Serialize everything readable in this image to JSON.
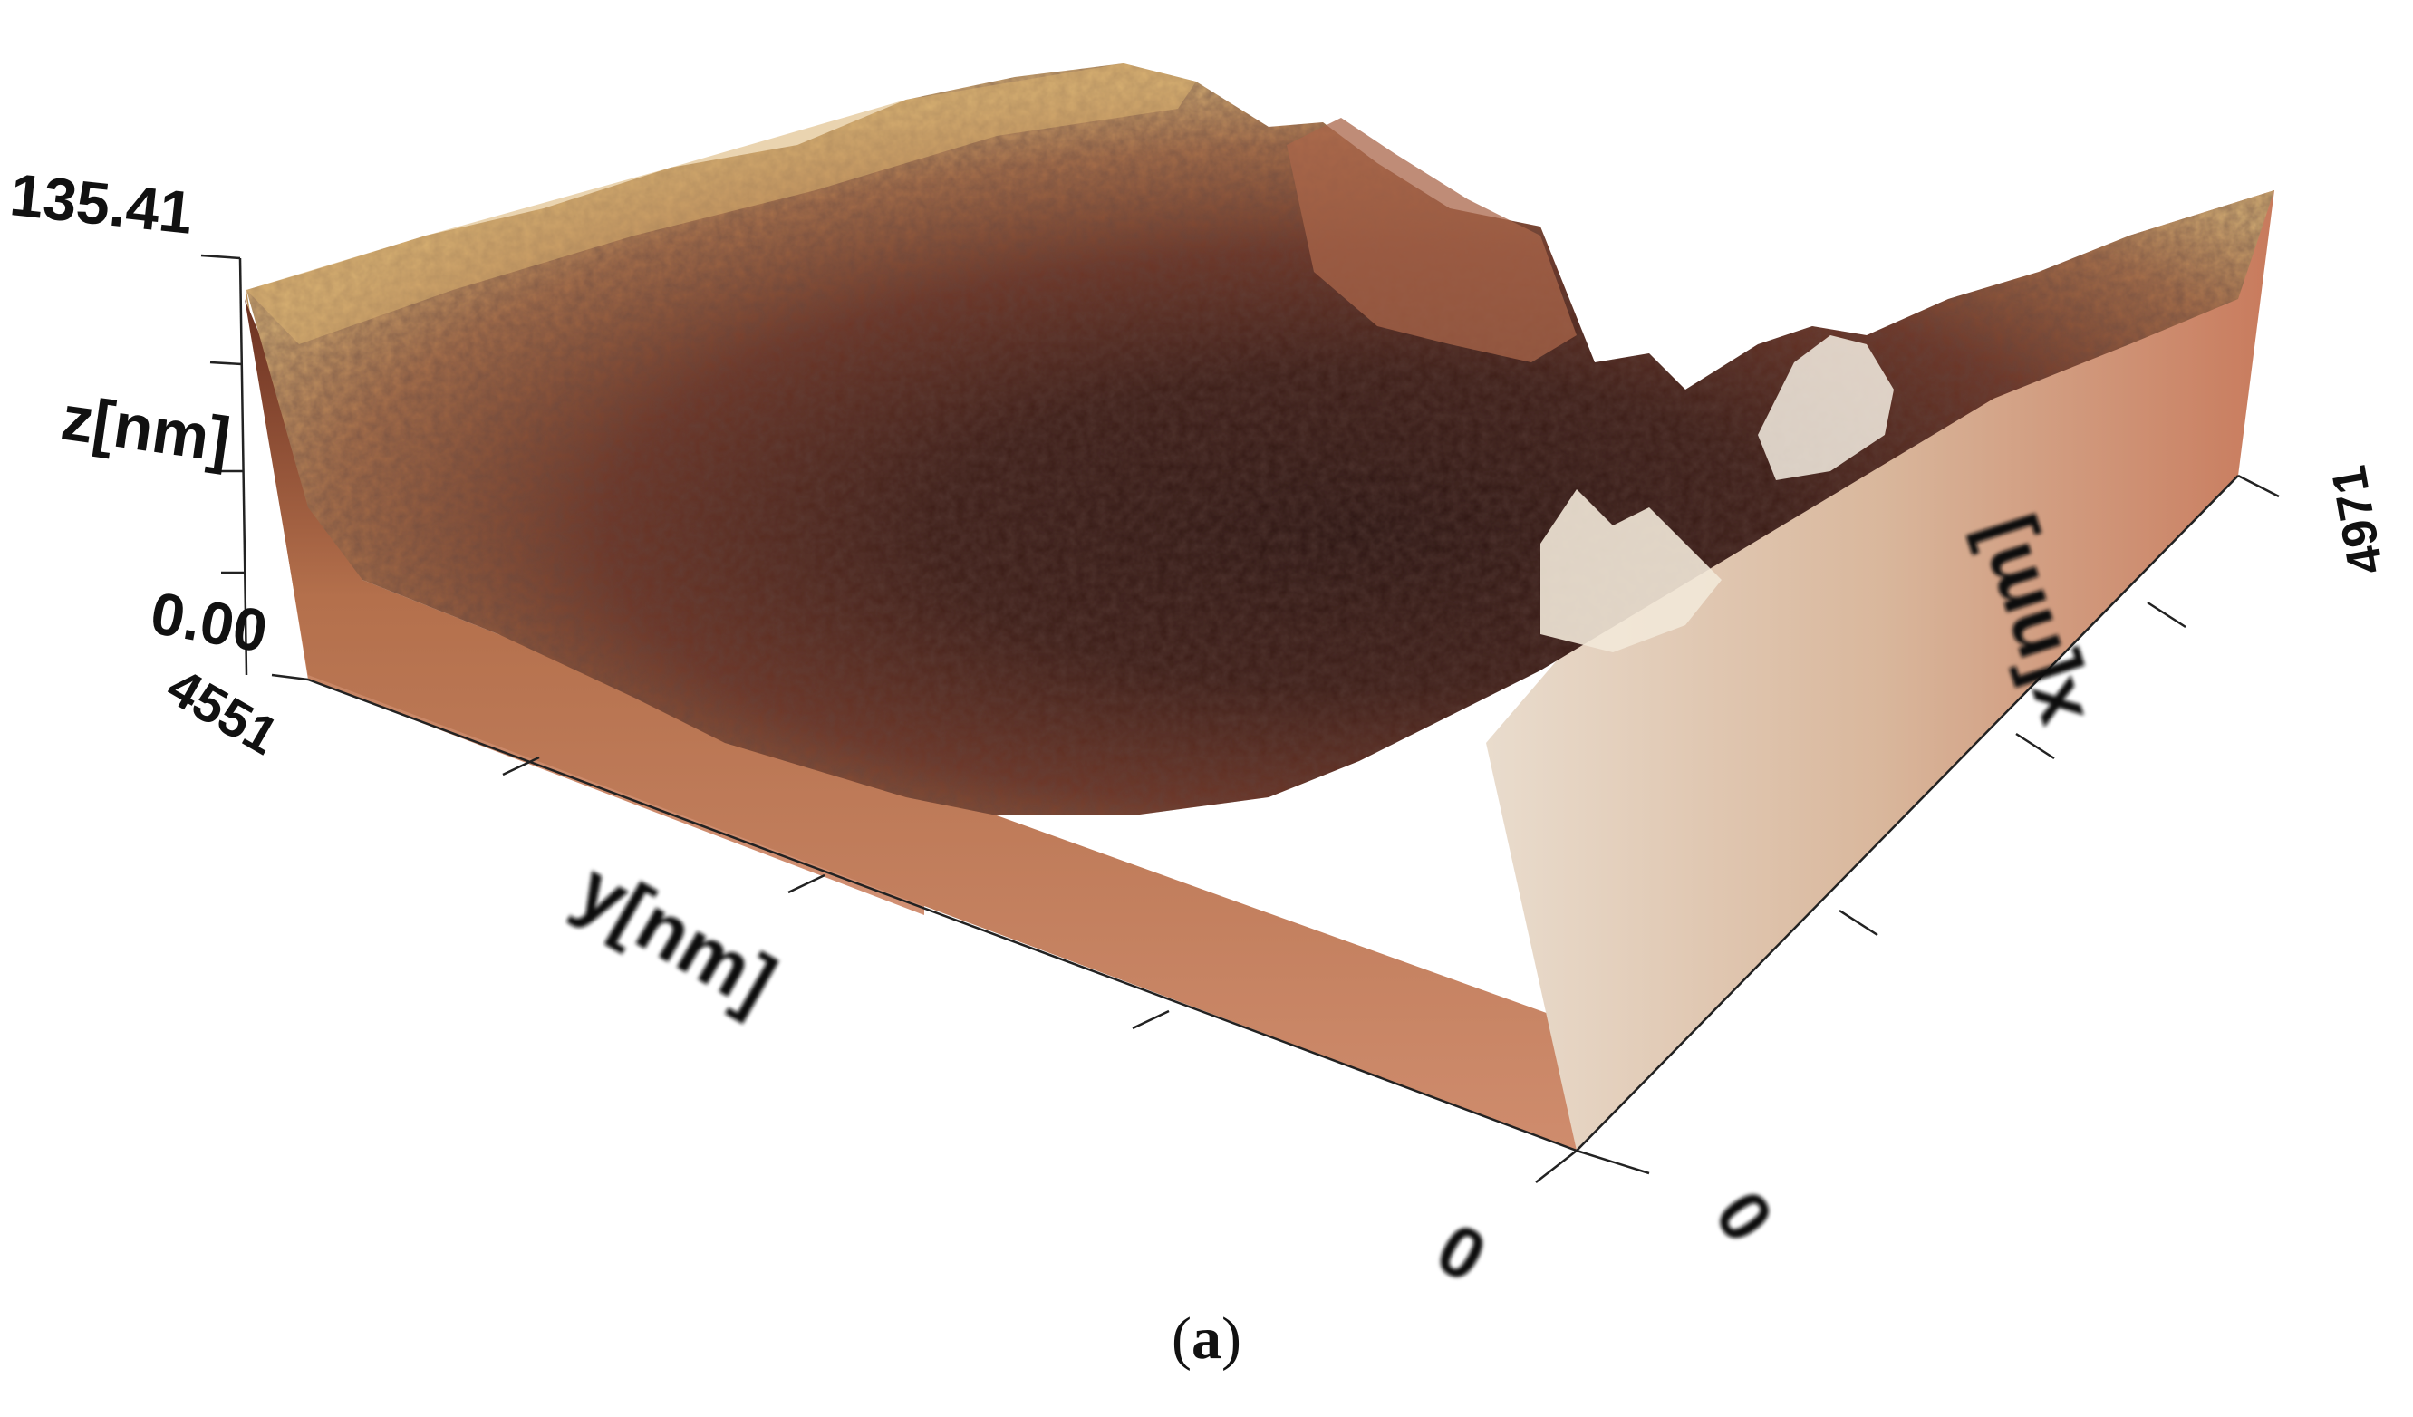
{
  "chart_data": {
    "type": "surface",
    "zlabel": "z[nm]",
    "ylabel": "y[nm]",
    "xlabel": "x[nm]",
    "z_ticks": [
      "135.41",
      "0.00"
    ],
    "y_ticks": [
      "4551",
      "0"
    ],
    "x_ticks": [
      "0",
      "4971"
    ],
    "zlim": [
      0.0,
      135.41
    ],
    "ylim": [
      0,
      4551
    ],
    "xlim": [
      0,
      4971
    ],
    "colormap": [
      "#2a1412",
      "#5a2a22",
      "#8c4a36",
      "#b9804f",
      "#d9b47a",
      "#f3ead9"
    ],
    "wall_color": "#c97c5d"
  },
  "caption": {
    "open": "(",
    "letter": "a",
    "close": ")"
  }
}
